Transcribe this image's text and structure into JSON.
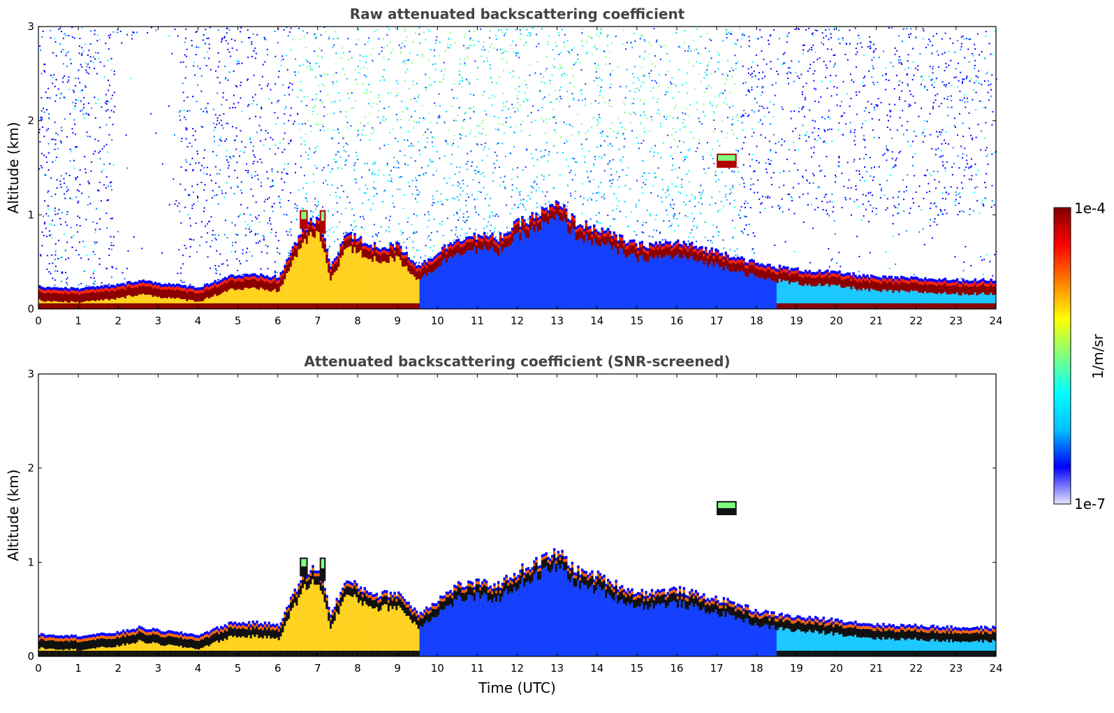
{
  "chart_data": [
    {
      "type": "heatmap",
      "title": "Raw attenuated backscattering coefficient",
      "xlabel": "",
      "ylabel": "Altitude (km)",
      "xlim": [
        0,
        24
      ],
      "ylim": [
        0,
        3
      ],
      "xticks": [
        "0",
        "1",
        "2",
        "3",
        "4",
        "5",
        "6",
        "7",
        "8",
        "9",
        "10",
        "11",
        "12",
        "13",
        "14",
        "15",
        "16",
        "17",
        "18",
        "19",
        "20",
        "21",
        "22",
        "23",
        "24"
      ],
      "yticks": [
        "0",
        "1",
        "2",
        "3"
      ],
      "screened": false,
      "noise": true,
      "boundary_layer_top_km": [
        [
          0,
          0.18
        ],
        [
          1,
          0.16
        ],
        [
          2,
          0.2
        ],
        [
          2.5,
          0.25
        ],
        [
          3,
          0.22
        ],
        [
          4,
          0.17
        ],
        [
          4.8,
          0.3
        ],
        [
          5.5,
          0.3
        ],
        [
          6,
          0.28
        ],
        [
          6.6,
          0.8
        ],
        [
          7,
          0.9
        ],
        [
          7.3,
          0.4
        ],
        [
          7.7,
          0.75
        ],
        [
          8,
          0.68
        ],
        [
          8.5,
          0.6
        ],
        [
          9,
          0.62
        ],
        [
          9.5,
          0.4
        ],
        [
          10,
          0.55
        ],
        [
          10.5,
          0.7
        ],
        [
          11,
          0.72
        ],
        [
          11.5,
          0.7
        ],
        [
          12,
          0.85
        ],
        [
          12.5,
          0.95
        ],
        [
          13,
          1.05
        ],
        [
          13.5,
          0.85
        ],
        [
          14,
          0.8
        ],
        [
          14.5,
          0.7
        ],
        [
          15,
          0.62
        ],
        [
          16,
          0.65
        ],
        [
          16.5,
          0.6
        ],
        [
          17,
          0.55
        ],
        [
          17.5,
          0.5
        ],
        [
          18,
          0.42
        ],
        [
          19,
          0.36
        ],
        [
          20,
          0.33
        ],
        [
          21,
          0.28
        ],
        [
          22,
          0.27
        ],
        [
          23,
          0.25
        ],
        [
          24,
          0.25
        ]
      ],
      "elevated_layers": [
        {
          "x": [
            17.0,
            17.5
          ],
          "alt_km": [
            1.5,
            1.65
          ]
        },
        {
          "x": [
            6.55,
            6.75
          ],
          "alt_km": [
            0.85,
            1.05
          ]
        },
        {
          "x": [
            7.05,
            7.2
          ],
          "alt_km": [
            0.8,
            1.05
          ]
        }
      ]
    },
    {
      "type": "heatmap",
      "title": "Attenuated backscattering coefficient (SNR-screened)",
      "xlabel": "Time (UTC)",
      "ylabel": "Altitude (km)",
      "xlim": [
        0,
        24
      ],
      "ylim": [
        0,
        3
      ],
      "xticks": [
        "0",
        "1",
        "2",
        "3",
        "4",
        "5",
        "6",
        "7",
        "8",
        "9",
        "10",
        "11",
        "12",
        "13",
        "14",
        "15",
        "16",
        "17",
        "18",
        "19",
        "20",
        "21",
        "22",
        "23",
        "24"
      ],
      "yticks": [
        "0",
        "1",
        "2",
        "3"
      ],
      "screened": true,
      "noise": false,
      "boundary_layer_top_km": [
        [
          0,
          0.18
        ],
        [
          1,
          0.16
        ],
        [
          2,
          0.2
        ],
        [
          2.5,
          0.25
        ],
        [
          3,
          0.22
        ],
        [
          4,
          0.17
        ],
        [
          4.8,
          0.3
        ],
        [
          5.5,
          0.3
        ],
        [
          6,
          0.28
        ],
        [
          6.6,
          0.8
        ],
        [
          7,
          0.9
        ],
        [
          7.3,
          0.4
        ],
        [
          7.7,
          0.75
        ],
        [
          8,
          0.68
        ],
        [
          8.5,
          0.6
        ],
        [
          9,
          0.62
        ],
        [
          9.5,
          0.4
        ],
        [
          10,
          0.55
        ],
        [
          10.5,
          0.7
        ],
        [
          11,
          0.72
        ],
        [
          11.5,
          0.7
        ],
        [
          12,
          0.85
        ],
        [
          12.5,
          0.95
        ],
        [
          13,
          1.05
        ],
        [
          13.5,
          0.85
        ],
        [
          14,
          0.8
        ],
        [
          14.5,
          0.7
        ],
        [
          15,
          0.62
        ],
        [
          16,
          0.65
        ],
        [
          16.5,
          0.6
        ],
        [
          17,
          0.55
        ],
        [
          17.5,
          0.5
        ],
        [
          18,
          0.42
        ],
        [
          19,
          0.36
        ],
        [
          20,
          0.33
        ],
        [
          21,
          0.28
        ],
        [
          22,
          0.27
        ],
        [
          23,
          0.25
        ],
        [
          24,
          0.25
        ]
      ],
      "elevated_layers": [
        {
          "x": [
            17.0,
            17.5
          ],
          "alt_km": [
            1.5,
            1.65
          ]
        },
        {
          "x": [
            6.55,
            6.75
          ],
          "alt_km": [
            0.85,
            1.05
          ]
        },
        {
          "x": [
            7.05,
            7.2
          ],
          "alt_km": [
            0.8,
            1.05
          ]
        }
      ]
    }
  ],
  "colorbar": {
    "label": "1/m/sr",
    "max_label": "1e-4",
    "min_label": "1e-7",
    "scale": "log",
    "range": [
      1e-07,
      0.0001
    ],
    "colormap": "jet",
    "colors": [
      "#e6e6fa",
      "#0000ff",
      "#00bfff",
      "#00ffff",
      "#7fff7f",
      "#ffff00",
      "#ff7f00",
      "#ff0000",
      "#800000"
    ]
  }
}
